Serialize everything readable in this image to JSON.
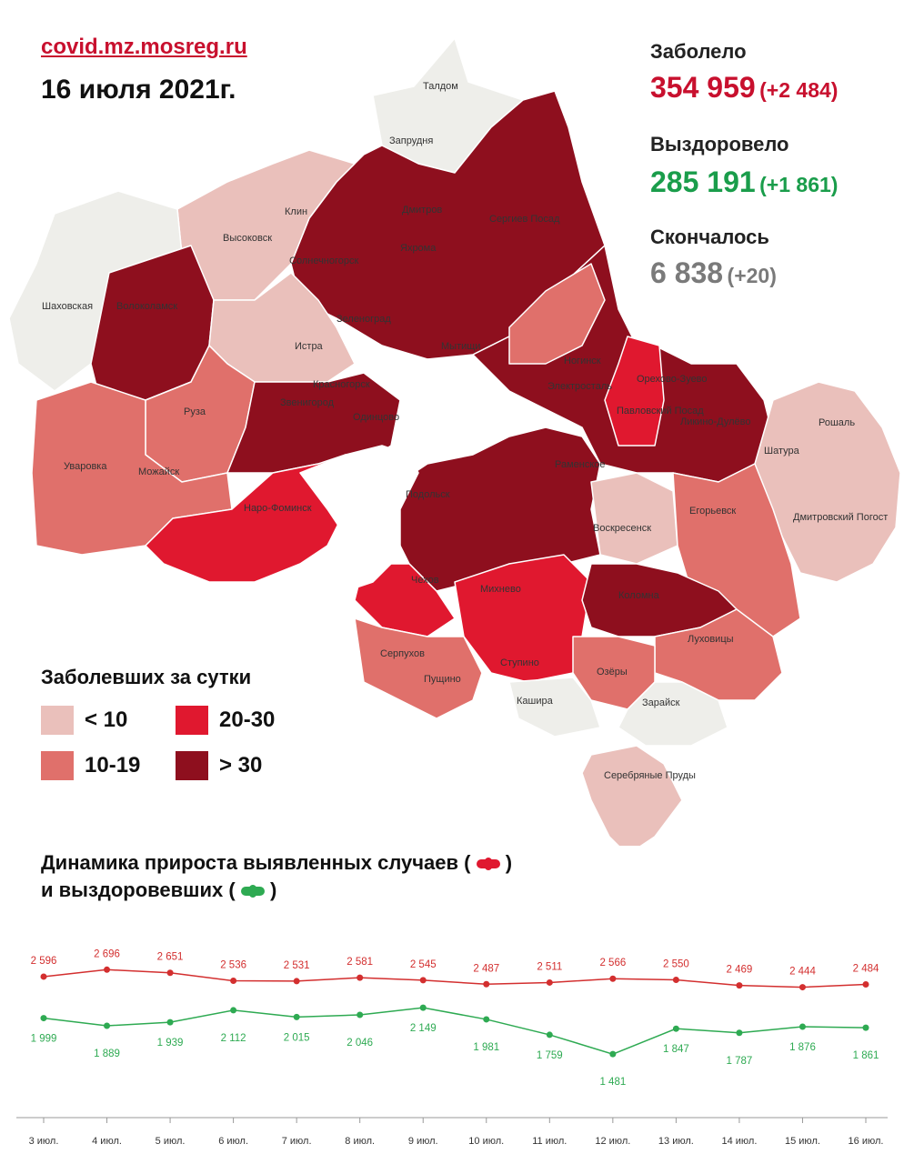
{
  "site": "covid.mz.mosreg.ru",
  "date": "16 июля 2021г.",
  "stats": {
    "sick_label": "Заболело",
    "sick_value": "354 959",
    "sick_delta": "(+2 484)",
    "recovered_label": "Выздоровело",
    "recovered_value": "285 191",
    "recovered_delta": "(+1 861)",
    "deaths_label": "Скончалось",
    "deaths_value": "6 838",
    "deaths_delta": "(+20)"
  },
  "colors": {
    "accent_red": "#c8102e",
    "accent_green": "#1a9d4b",
    "gray": "#7a7a7a",
    "lt10": "#eac0bb",
    "r10_19": "#e0706b",
    "r20_30": "#e0182f",
    "gt30": "#8e0f1e",
    "none": "#eeeeea"
  },
  "legend": {
    "title": "Заболевших за сутки",
    "items": [
      "< 10",
      "10-19",
      "20-30",
      "> 30"
    ]
  },
  "map_labels": [
    "Талдом",
    "Запрудня",
    "Клин",
    "Высоковск",
    "Дмитров",
    "Сергиев Посад",
    "Яхрома",
    "Солнечногорск",
    "Шаховская",
    "Волоколамск",
    "Зеленоград",
    "Истра",
    "Мытищи",
    "Ногинск",
    "Электросталь",
    "Орехово-Зуево",
    "Павловский Посад",
    "Ликино-Дулёво",
    "Красногорск",
    "Звенигород",
    "Одинцово",
    "Руза",
    "Рошаль",
    "Уваровка",
    "Можайск",
    "Раменское",
    "Шатура",
    "Наро-Фоминск",
    "Подольск",
    "Воскресенск",
    "Егорьевск",
    "Дмитровский Погост",
    "Чехов",
    "Михнево",
    "Коломна",
    "Серпухов",
    "Пущино",
    "Ступино",
    "Луховицы",
    "Озёры",
    "Кашира",
    "Зарайск",
    "Серебряные Пруды"
  ],
  "chart_data": {
    "type": "line",
    "title": "Динамика прироста выявленных случаев ( ) и выздоровевших ( )",
    "title_line1": "Динамика прироста выявленных случаев (",
    "title_line1_end": ")",
    "title_line2": "и выздоровевших (",
    "title_line2_end": ")",
    "categories": [
      "3 июл.",
      "4 июл.",
      "5 июл.",
      "6 июл.",
      "7 июл.",
      "8 июл.",
      "9 июл.",
      "10 июл.",
      "11 июл.",
      "12 июл.",
      "13 июл.",
      "14 июл.",
      "15 июл.",
      "16 июл."
    ],
    "series": [
      {
        "values": [
          2596,
          2696,
          2651,
          2536,
          2531,
          2581,
          2545,
          2487,
          2511,
          2566,
          2550,
          2469,
          2444,
          2484
        ],
        "labels": [
          "2 596",
          "2 696",
          "2 651",
          "2 536",
          "2 531",
          "2 581",
          "2 545",
          "2 487",
          "2 511",
          "2 566",
          "2 550",
          "2 469",
          "2 444",
          "2 484"
        ],
        "color": "#d32f2f"
      },
      {
        "values": [
          1999,
          1889,
          1939,
          2112,
          2015,
          2046,
          2149,
          1981,
          1759,
          1481,
          1847,
          1787,
          1876,
          1861
        ],
        "labels": [
          "1 999",
          "1 889",
          "1 939",
          "2 112",
          "2 015",
          "2 046",
          "2 149",
          "1 981",
          "1 759",
          "1 481",
          "1 847",
          "1 787",
          "1 876",
          "1 861"
        ],
        "color": "#2eaa52"
      }
    ]
  }
}
